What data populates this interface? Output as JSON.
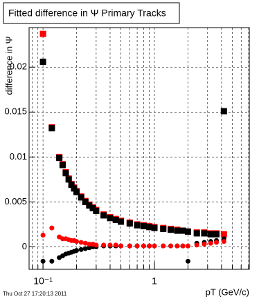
{
  "chart_data": {
    "type": "scatter",
    "title": "Fitted difference in Ψ  Primary Tracks",
    "y_label": "difference in Ψ",
    "x_label": "pT (GeV/c)",
    "footer": "Thu Oct 27 17:20:13 2011",
    "x_log": true,
    "grid": true,
    "xlim": [
      0.075,
      7.1
    ],
    "ylim": [
      -0.0025,
      0.0244
    ],
    "xticks": [
      {
        "value": 0.1,
        "label": "10⁻¹"
      },
      1
    ],
    "xgrid": [
      0.08,
      0.09,
      0.1,
      0.2,
      0.3,
      0.4,
      0.5,
      0.6,
      0.7,
      0.8,
      0.9,
      1,
      2,
      3,
      4,
      5,
      6,
      7
    ],
    "yticks": [
      0,
      0.005,
      0.01,
      0.015,
      0.02
    ],
    "x": [
      0.1,
      0.12,
      0.14,
      0.15,
      0.16,
      0.17,
      0.18,
      0.19,
      0.2,
      0.22,
      0.24,
      0.26,
      0.28,
      0.3,
      0.35,
      0.4,
      0.45,
      0.5,
      0.6,
      0.7,
      0.8,
      0.9,
      1,
      1.2,
      1.4,
      1.6,
      1.8,
      2,
      2.4,
      2.8,
      3.2,
      3.6,
      4.2
    ],
    "series": [
      {
        "name": "red-squares",
        "color": "#ff0000",
        "marker": "square",
        "values": [
          0.0237,
          0.0133,
          0.01,
          0.0092,
          0.0083,
          0.0076,
          0.007,
          0.0066,
          0.0062,
          0.0056,
          0.0051,
          0.0047,
          0.0044,
          0.0041,
          0.0036,
          0.0033,
          0.0031,
          0.0029,
          0.0027,
          0.0025,
          0.0024,
          0.0023,
          0.0022,
          0.0021,
          0.002,
          0.0019,
          0.0018,
          0.0017,
          0.0016,
          0.0016,
          0.0015,
          0.0015,
          0.0014
        ]
      },
      {
        "name": "black-squares",
        "color": "#000000",
        "marker": "square",
        "values": [
          0.0206,
          0.0132,
          0.0099,
          0.0091,
          0.0082,
          0.0075,
          0.0069,
          0.0065,
          0.0061,
          0.0055,
          0.005,
          0.0046,
          0.0043,
          0.004,
          0.0035,
          0.0032,
          0.003,
          0.0028,
          0.0026,
          0.0024,
          0.0023,
          0.0022,
          0.0021,
          0.002,
          0.0019,
          0.0018,
          0.0018,
          0.0017,
          0.0015,
          0.0015,
          0.0014,
          0.0014,
          0.0151
        ]
      },
      {
        "name": "black-circles",
        "color": "#000000",
        "marker": "circle",
        "values": [
          -0.0016,
          -0.0016,
          -0.0012,
          -0.001,
          -0.0008,
          -0.0007,
          -0.0006,
          -0.0005,
          -0.0004,
          -0.0003,
          -0.0002,
          -0.0001,
          0,
          0,
          0.0001,
          0.0001,
          0.0001,
          0.0001,
          0.0001,
          0.0001,
          0.0001,
          0.0001,
          0.0001,
          0.0001,
          0.0001,
          0.0001,
          0.0001,
          -0.0016,
          0.0004,
          0.0005,
          0.0006,
          0.0007,
          0.0009
        ]
      },
      {
        "name": "red-circles",
        "color": "#ff0000",
        "marker": "circle",
        "values": [
          0.0013,
          0.0021,
          0.0011,
          0.0009,
          0.0009,
          0.0008,
          0.0007,
          0.0007,
          0.0006,
          0.0005,
          0.0004,
          0.0003,
          0.0003,
          0.0002,
          0.0002,
          0.0002,
          0.0002,
          0.0001,
          0.0001,
          0.0001,
          0.0001,
          0.0001,
          0.0001,
          0.0001,
          0.0001,
          0.0001,
          0.0001,
          0.0001,
          0.0002,
          0.0003,
          0.0004,
          0.0005,
          0.0006
        ]
      }
    ]
  }
}
